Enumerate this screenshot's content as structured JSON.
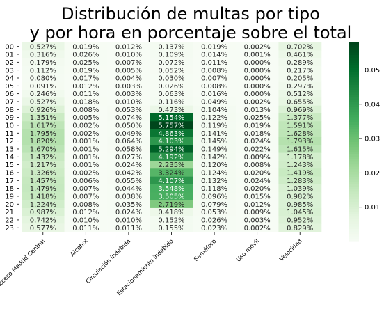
{
  "chart_data": {
    "type": "heatmap",
    "title_lines": [
      "Distribución de multas por tipo",
      "y por hora en porcentaje sobre el total"
    ],
    "columns": [
      "Acceso Madrid Central",
      "Alcohol",
      "Circulación indebida",
      "Estacionamiento indebido",
      "Semáforo",
      "Uso móvil",
      "Velocidad"
    ],
    "rows": [
      "00",
      "01",
      "02",
      "03",
      "04",
      "05",
      "06",
      "07",
      "08",
      "09",
      "10",
      "11",
      "12",
      "13",
      "14",
      "15",
      "16",
      "17",
      "18",
      "19",
      "20",
      "21",
      "22",
      "23"
    ],
    "values": [
      [
        0.527,
        0.019,
        0.012,
        0.137,
        0.019,
        0.002,
        0.702
      ],
      [
        0.316,
        0.026,
        0.01,
        0.109,
        0.014,
        0.001,
        0.461
      ],
      [
        0.179,
        0.025,
        0.007,
        0.072,
        0.011,
        0.0,
        0.289
      ],
      [
        0.112,
        0.019,
        0.005,
        0.052,
        0.008,
        0.0,
        0.217
      ],
      [
        0.08,
        0.017,
        0.004,
        0.03,
        0.007,
        0.0,
        0.205
      ],
      [
        0.091,
        0.012,
        0.003,
        0.026,
        0.008,
        0.0,
        0.297
      ],
      [
        0.246,
        0.011,
        0.003,
        0.063,
        0.016,
        0.0,
        0.512
      ],
      [
        0.527,
        0.018,
        0.01,
        0.116,
        0.049,
        0.002,
        0.655
      ],
      [
        0.926,
        0.008,
        0.053,
        0.473,
        0.104,
        0.013,
        0.969
      ],
      [
        1.351,
        0.005,
        0.074,
        5.154,
        0.122,
        0.025,
        1.377
      ],
      [
        1.617,
        0.002,
        0.05,
        5.757,
        0.119,
        0.019,
        1.591
      ],
      [
        1.795,
        0.002,
        0.049,
        4.863,
        0.141,
        0.018,
        1.628
      ],
      [
        1.82,
        0.001,
        0.064,
        4.103,
        0.145,
        0.024,
        1.793
      ],
      [
        1.67,
        0.001,
        0.058,
        5.294,
        0.149,
        0.022,
        1.615
      ],
      [
        1.432,
        0.001,
        0.027,
        4.192,
        0.142,
        0.009,
        1.178
      ],
      [
        1.217,
        0.001,
        0.024,
        2.235,
        0.12,
        0.008,
        1.243
      ],
      [
        1.326,
        0.002,
        0.042,
        3.324,
        0.124,
        0.02,
        1.419
      ],
      [
        1.457,
        0.006,
        0.055,
        4.107,
        0.132,
        0.024,
        1.283
      ],
      [
        1.479,
        0.007,
        0.044,
        3.548,
        0.118,
        0.02,
        1.039
      ],
      [
        1.418,
        0.007,
        0.038,
        3.505,
        0.096,
        0.015,
        0.982
      ],
      [
        1.224,
        0.008,
        0.035,
        2.719,
        0.079,
        0.012,
        0.985
      ],
      [
        0.987,
        0.012,
        0.024,
        0.418,
        0.053,
        0.009,
        1.045
      ],
      [
        0.742,
        0.01,
        0.01,
        0.152,
        0.026,
        0.003,
        0.952
      ],
      [
        0.577,
        0.011,
        0.011,
        0.155,
        0.023,
        0.002,
        0.829
      ]
    ],
    "value_suffix": "%",
    "colorbar": {
      "colormap": "Greens",
      "vmin": 0.0,
      "vmax": 0.058,
      "ticks": [
        0.01,
        0.02,
        0.03,
        0.04,
        0.05
      ],
      "tick_labels": [
        "0.01",
        "0.02",
        "0.03",
        "0.04",
        "0.05"
      ]
    }
  }
}
